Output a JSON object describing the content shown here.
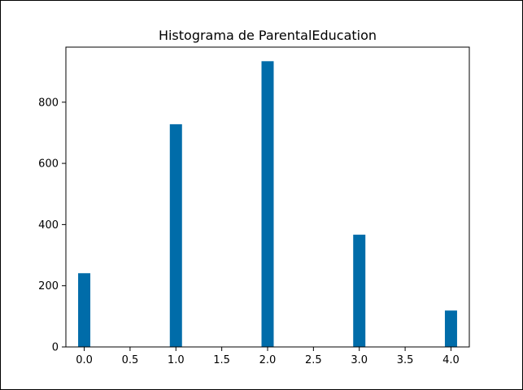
{
  "chart_data": {
    "type": "bar",
    "title": "Histograma de ParentalEducation",
    "xlabel": "",
    "ylabel": "",
    "bar_color": "#006ca9",
    "bins": [
      {
        "x": 0.0,
        "count": 241
      },
      {
        "x": 1.0,
        "count": 728
      },
      {
        "x": 2.0,
        "count": 934
      },
      {
        "x": 3.0,
        "count": 367
      },
      {
        "x": 4.0,
        "count": 119
      }
    ],
    "bin_width": 0.133,
    "xlim": [
      -0.2,
      4.2
    ],
    "ylim": [
      0,
      980
    ],
    "xticks": [
      "0.0",
      "0.5",
      "1.0",
      "1.5",
      "2.0",
      "2.5",
      "3.0",
      "3.5",
      "4.0"
    ],
    "xtick_values": [
      0.0,
      0.5,
      1.0,
      1.5,
      2.0,
      2.5,
      3.0,
      3.5,
      4.0
    ],
    "yticks": [
      "0",
      "200",
      "400",
      "600",
      "800"
    ],
    "ytick_values": [
      0,
      200,
      400,
      600,
      800
    ],
    "grid": false,
    "legend": "none"
  }
}
